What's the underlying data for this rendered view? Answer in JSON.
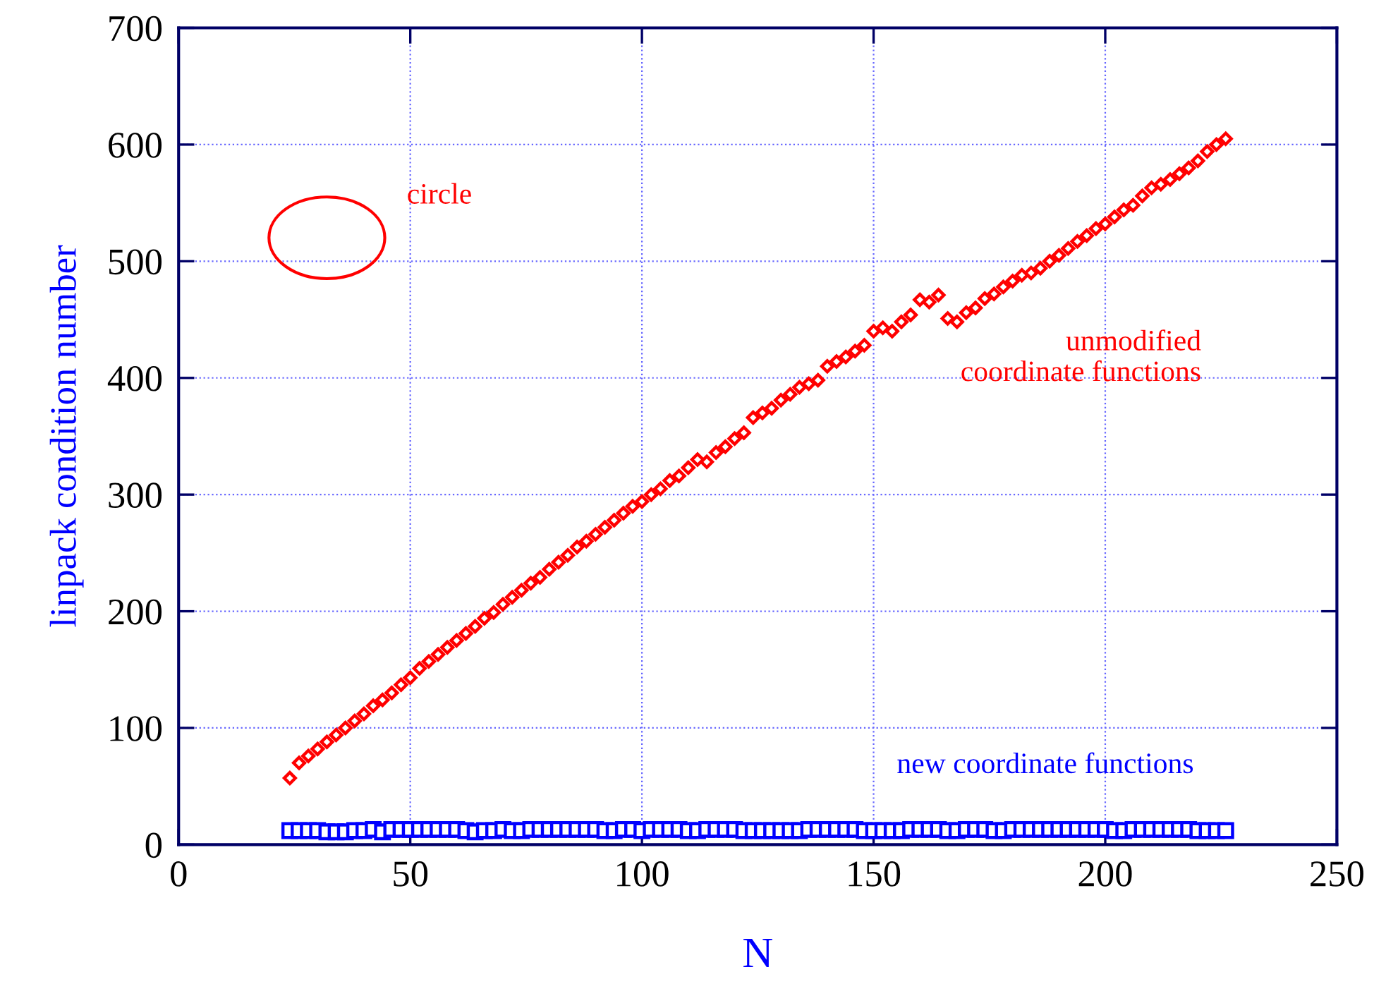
{
  "chart_data": {
    "type": "scatter",
    "xlabel": "N",
    "ylabel": "linpack condition number",
    "xlim": [
      0,
      250
    ],
    "ylim": [
      0,
      700
    ],
    "xticks": [
      0,
      50,
      100,
      150,
      200,
      250
    ],
    "yticks": [
      0,
      100,
      200,
      300,
      400,
      500,
      600,
      700
    ],
    "grid": true,
    "legend": false,
    "annotations": [
      "circle"
    ],
    "series": [
      {
        "name": "unmodified\ncoordinate functions",
        "color": "#ff0000",
        "marker": "diamond",
        "x": [
          24,
          26,
          28,
          30,
          32,
          34,
          36,
          38,
          40,
          42,
          44,
          46,
          48,
          50,
          52,
          54,
          56,
          58,
          60,
          62,
          64,
          66,
          68,
          70,
          72,
          74,
          76,
          78,
          80,
          82,
          84,
          86,
          88,
          90,
          92,
          94,
          96,
          98,
          100,
          102,
          104,
          106,
          108,
          110,
          112,
          114,
          116,
          118,
          120,
          122,
          124,
          126,
          128,
          130,
          132,
          134,
          136,
          138,
          140,
          142,
          144,
          146,
          148,
          150,
          152,
          154,
          156,
          158,
          160,
          162,
          164,
          166,
          168,
          170,
          172,
          174,
          176,
          178,
          180,
          182,
          184,
          186,
          188,
          190,
          192,
          194,
          196,
          198,
          200,
          202,
          204,
          206,
          208,
          210,
          212,
          214,
          216,
          218,
          220,
          222,
          224,
          226
        ],
        "values": [
          57,
          70,
          76,
          82,
          88,
          94,
          100,
          106,
          112,
          119,
          124,
          130,
          137,
          143,
          151,
          157,
          163,
          169,
          175,
          181,
          187,
          194,
          199,
          206,
          212,
          218,
          224,
          229,
          236,
          242,
          248,
          255,
          260,
          266,
          272,
          278,
          284,
          290,
          294,
          300,
          305,
          312,
          316,
          323,
          330,
          328,
          336,
          341,
          348,
          353,
          366,
          370,
          374,
          381,
          386,
          392,
          395,
          398,
          410,
          414,
          418,
          423,
          428,
          440,
          443,
          440,
          448,
          454,
          467,
          465,
          471,
          451,
          448,
          456,
          460,
          468,
          472,
          478,
          483,
          488,
          490,
          494,
          500,
          505,
          511,
          517,
          522,
          528,
          532,
          538,
          544,
          548,
          556,
          563,
          566,
          570,
          575,
          580,
          586,
          594,
          600,
          605
        ]
      },
      {
        "name": "new coordinate functions",
        "color": "#0000ff",
        "marker": "square",
        "x": [
          24,
          26,
          28,
          30,
          32,
          34,
          36,
          38,
          40,
          42,
          44,
          46,
          48,
          50,
          52,
          54,
          56,
          58,
          60,
          62,
          64,
          66,
          68,
          70,
          72,
          74,
          76,
          78,
          80,
          82,
          84,
          86,
          88,
          90,
          92,
          94,
          96,
          98,
          100,
          102,
          104,
          106,
          108,
          110,
          112,
          114,
          116,
          118,
          120,
          122,
          124,
          126,
          128,
          130,
          132,
          134,
          136,
          138,
          140,
          142,
          144,
          146,
          148,
          150,
          152,
          154,
          156,
          158,
          160,
          162,
          164,
          166,
          168,
          170,
          172,
          174,
          176,
          178,
          180,
          182,
          184,
          186,
          188,
          190,
          192,
          194,
          196,
          198,
          200,
          202,
          204,
          206,
          208,
          210,
          212,
          214,
          216,
          218,
          220,
          222,
          224,
          226
        ],
        "values": [
          12,
          12,
          12,
          12,
          11,
          11,
          11,
          12,
          12,
          13,
          11,
          13,
          13,
          13,
          13,
          13,
          13,
          13,
          13,
          12,
          11,
          12,
          12,
          13,
          12,
          12,
          13,
          13,
          13,
          13,
          13,
          13,
          13,
          13,
          12,
          12,
          13,
          13,
          12,
          13,
          13,
          13,
          13,
          12,
          12,
          13,
          13,
          13,
          13,
          12,
          12,
          12,
          12,
          12,
          12,
          12,
          13,
          13,
          13,
          13,
          13,
          13,
          12,
          12,
          12,
          12,
          12,
          13,
          13,
          13,
          13,
          12,
          12,
          13,
          13,
          13,
          12,
          12,
          13,
          13,
          13,
          13,
          13,
          13,
          13,
          13,
          13,
          13,
          13,
          12,
          12,
          13,
          13,
          13,
          13,
          13,
          13,
          13,
          12,
          12,
          12,
          12
        ]
      }
    ]
  }
}
